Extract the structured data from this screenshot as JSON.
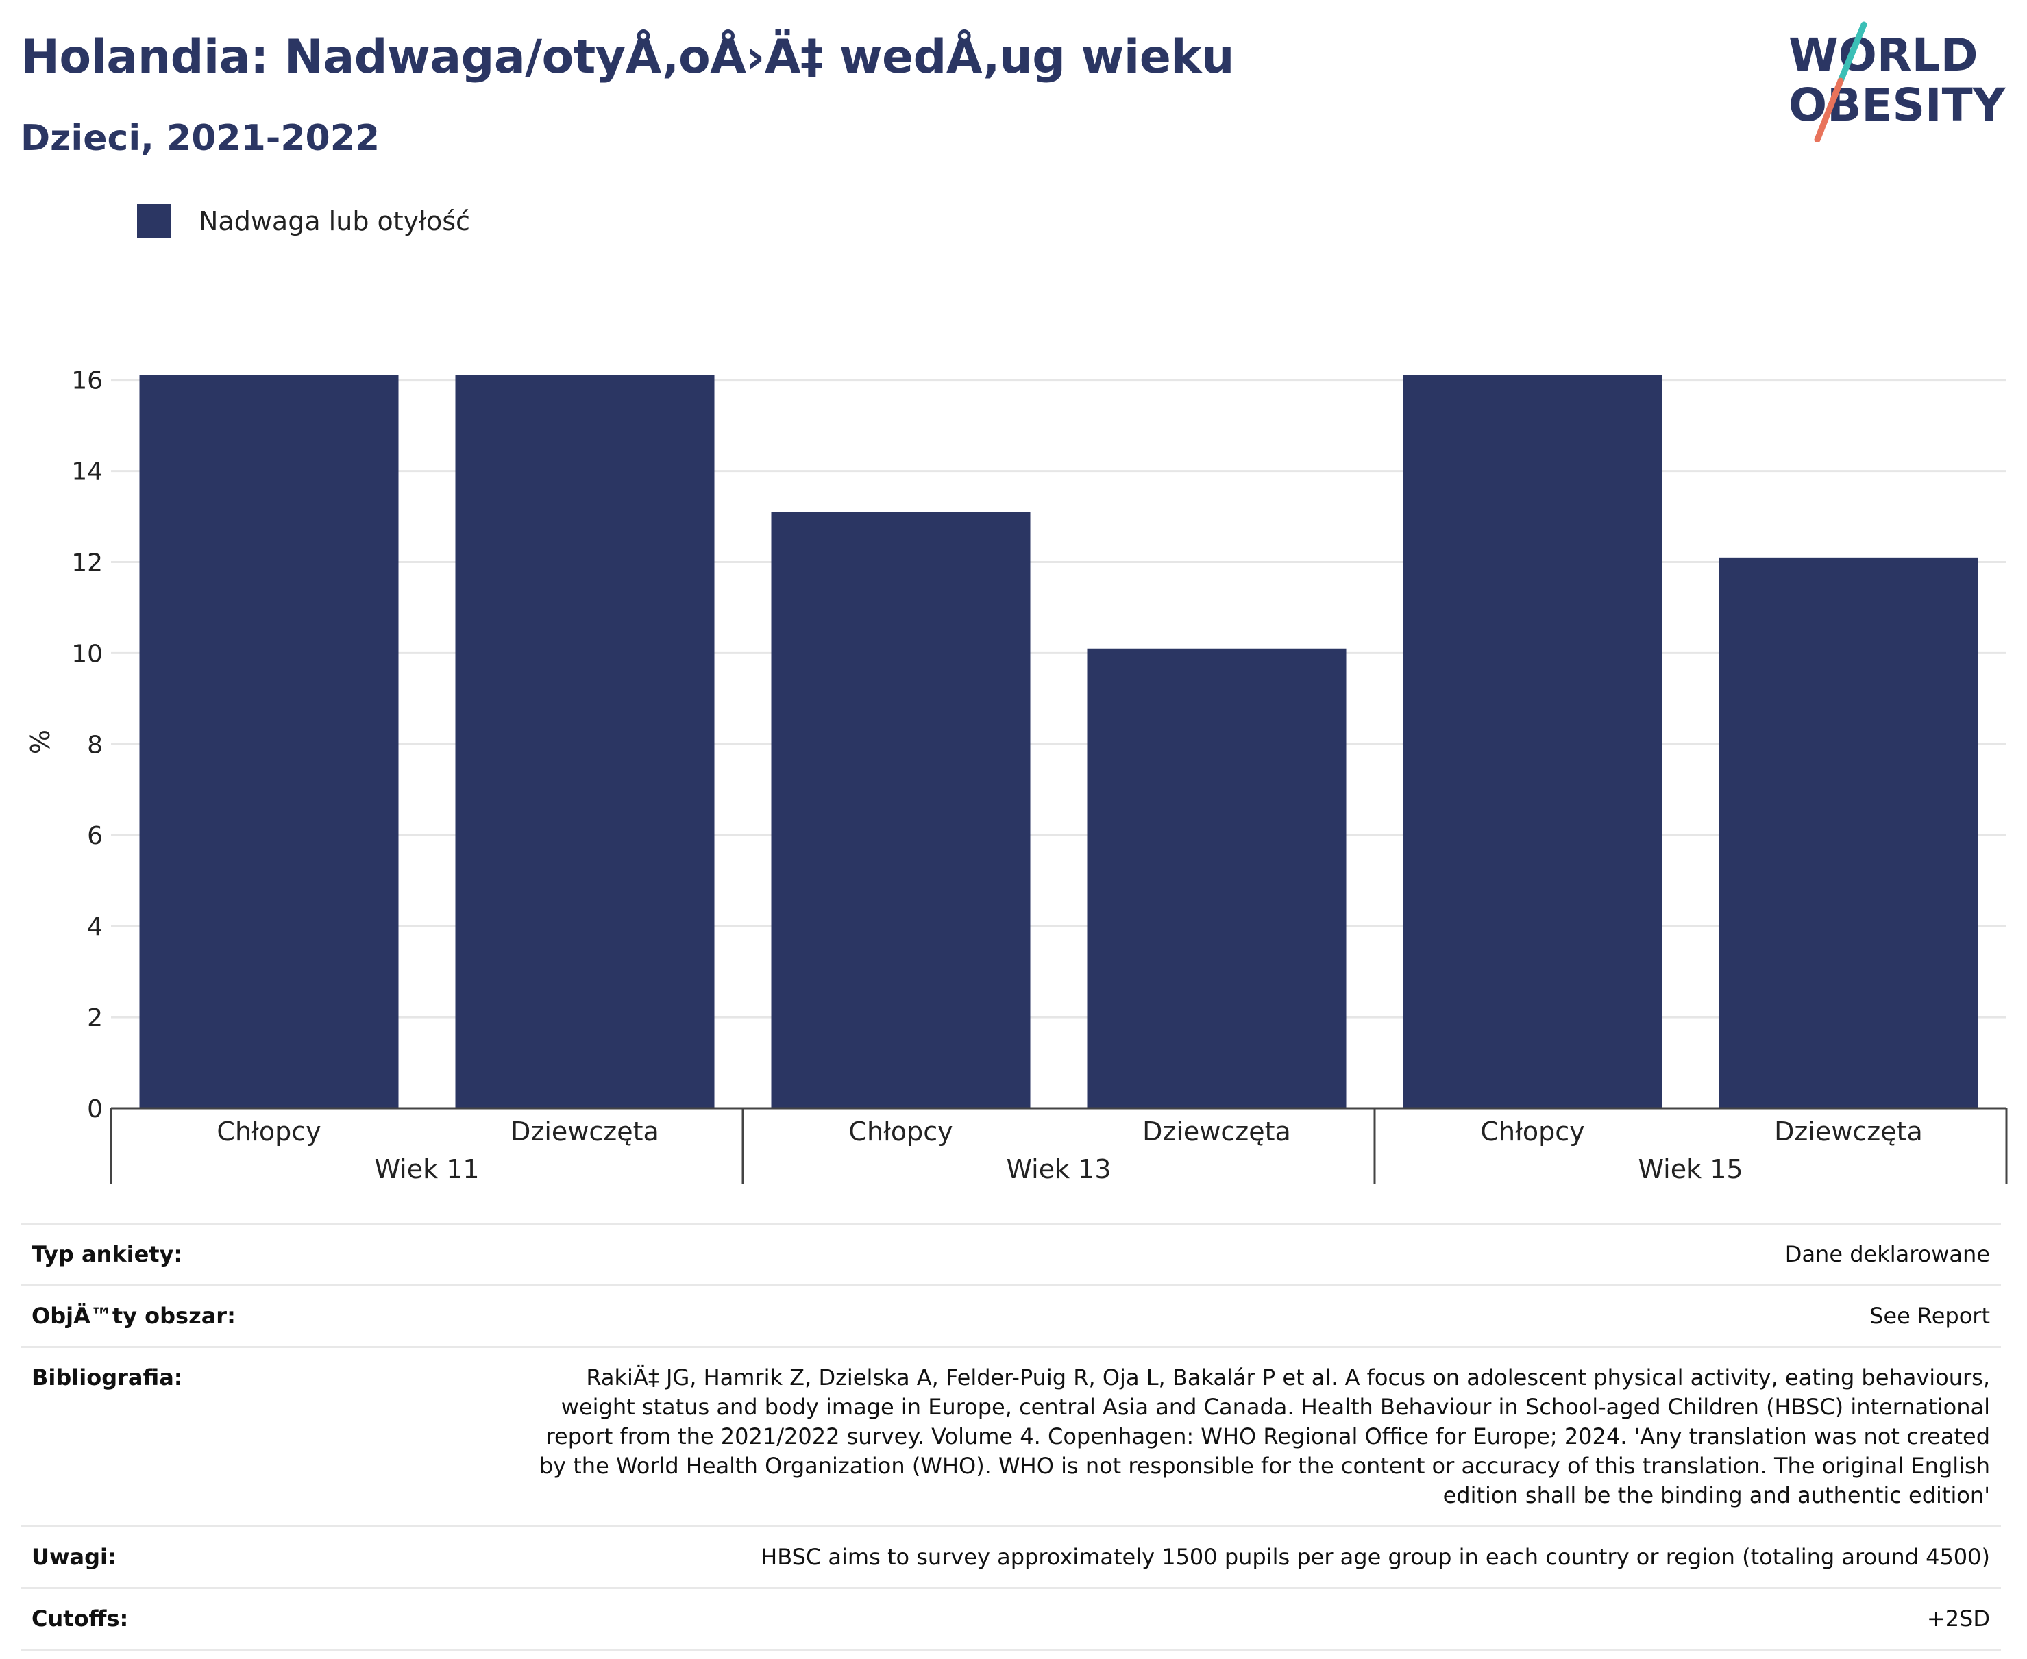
{
  "header": {
    "title": "Holandia: Nadwaga/otyÅ‚oÅ›Ä‡ wedÅ‚ug wieku",
    "subtitle": "Dzieci, 2021-2022"
  },
  "logo": {
    "line1": "WORLD",
    "line2": "OBESITY",
    "colors": {
      "text": "#2b3663",
      "slash_teal": "#3bbfb6",
      "slash_coral": "#e8735b"
    }
  },
  "legend": {
    "items": [
      {
        "label": "Nadwaga lub otyłość",
        "color": "#2b3663"
      }
    ]
  },
  "chart_data": {
    "type": "bar",
    "groups": [
      {
        "label": "Wiek 11",
        "categories": [
          "Chłopcy",
          "Dziewczęta"
        ],
        "values": [
          16.1,
          16.1
        ]
      },
      {
        "label": "Wiek 13",
        "categories": [
          "Chłopcy",
          "Dziewczęta"
        ],
        "values": [
          13.1,
          10.1
        ]
      },
      {
        "label": "Wiek 15",
        "categories": [
          "Chłopcy",
          "Dziewczęta"
        ],
        "values": [
          16.1,
          12.1
        ]
      }
    ],
    "series": [
      {
        "name": "Nadwaga lub otyłość",
        "color": "#2b3663"
      }
    ],
    "ylabel": "%",
    "ylim": [
      0,
      16.1
    ],
    "yticks": [
      0,
      2,
      4,
      6,
      8,
      10,
      12,
      14,
      16
    ],
    "grid": true,
    "legend_position": "top-left"
  },
  "meta": [
    {
      "label": "Typ ankiety:",
      "value": "Dane deklarowane"
    },
    {
      "label": "ObjÄ™ty obszar:",
      "value": "See Report"
    },
    {
      "label": "Bibliografia:",
      "value": "RakiÄ‡ JG, Hamrik Z, Dzielska A, Felder-Puig R, Oja L, Bakalár P et al. A focus on adolescent physical activity, eating behaviours, weight status and body image in Europe, central Asia and Canada. Health Behaviour in School-aged Children (HBSC) international report from the 2021/2022 survey. Volume 4. Copenhagen: WHO Regional Office for Europe; 2024. 'Any translation was not created by the World Health Organization (WHO). WHO is not responsible for the content or accuracy of this translation. The original English edition shall be the binding and authentic edition'"
    },
    {
      "label": "Uwagi:",
      "value": "HBSC aims to survey approximately 1500 pupils per age group in each country or region (totaling around 4500)"
    },
    {
      "label": "Cutoffs:",
      "value": "+2SD"
    }
  ]
}
